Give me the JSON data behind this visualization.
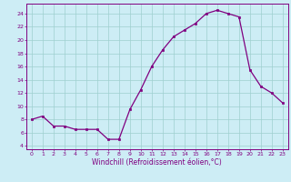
{
  "x": [
    0,
    1,
    2,
    3,
    4,
    5,
    6,
    7,
    8,
    9,
    10,
    11,
    12,
    13,
    14,
    15,
    16,
    17,
    18,
    19,
    20,
    21,
    22,
    23
  ],
  "y": [
    8.0,
    8.5,
    7.0,
    7.0,
    6.5,
    6.5,
    6.5,
    5.0,
    5.0,
    9.5,
    12.5,
    16.0,
    18.5,
    20.5,
    21.5,
    22.5,
    24.0,
    24.5,
    24.0,
    23.5,
    15.5,
    13.0,
    12.0,
    10.5
  ],
  "line_color": "#800080",
  "marker_color": "#800080",
  "bg_color": "#cdedf5",
  "grid_color": "#9fcfcf",
  "xlabel": "Windchill (Refroidissement éolien,°C)",
  "xlabel_color": "#800080",
  "tick_color": "#800080",
  "spine_color": "#800080",
  "ylim": [
    3.5,
    25.5
  ],
  "xlim": [
    -0.5,
    23.5
  ],
  "yticks": [
    4,
    6,
    8,
    10,
    12,
    14,
    16,
    18,
    20,
    22,
    24
  ],
  "xticks": [
    0,
    1,
    2,
    3,
    4,
    5,
    6,
    7,
    8,
    9,
    10,
    11,
    12,
    13,
    14,
    15,
    16,
    17,
    18,
    19,
    20,
    21,
    22,
    23
  ],
  "tick_fontsize": 4.5,
  "xlabel_fontsize": 5.5,
  "linewidth": 0.9,
  "markersize": 2.0
}
